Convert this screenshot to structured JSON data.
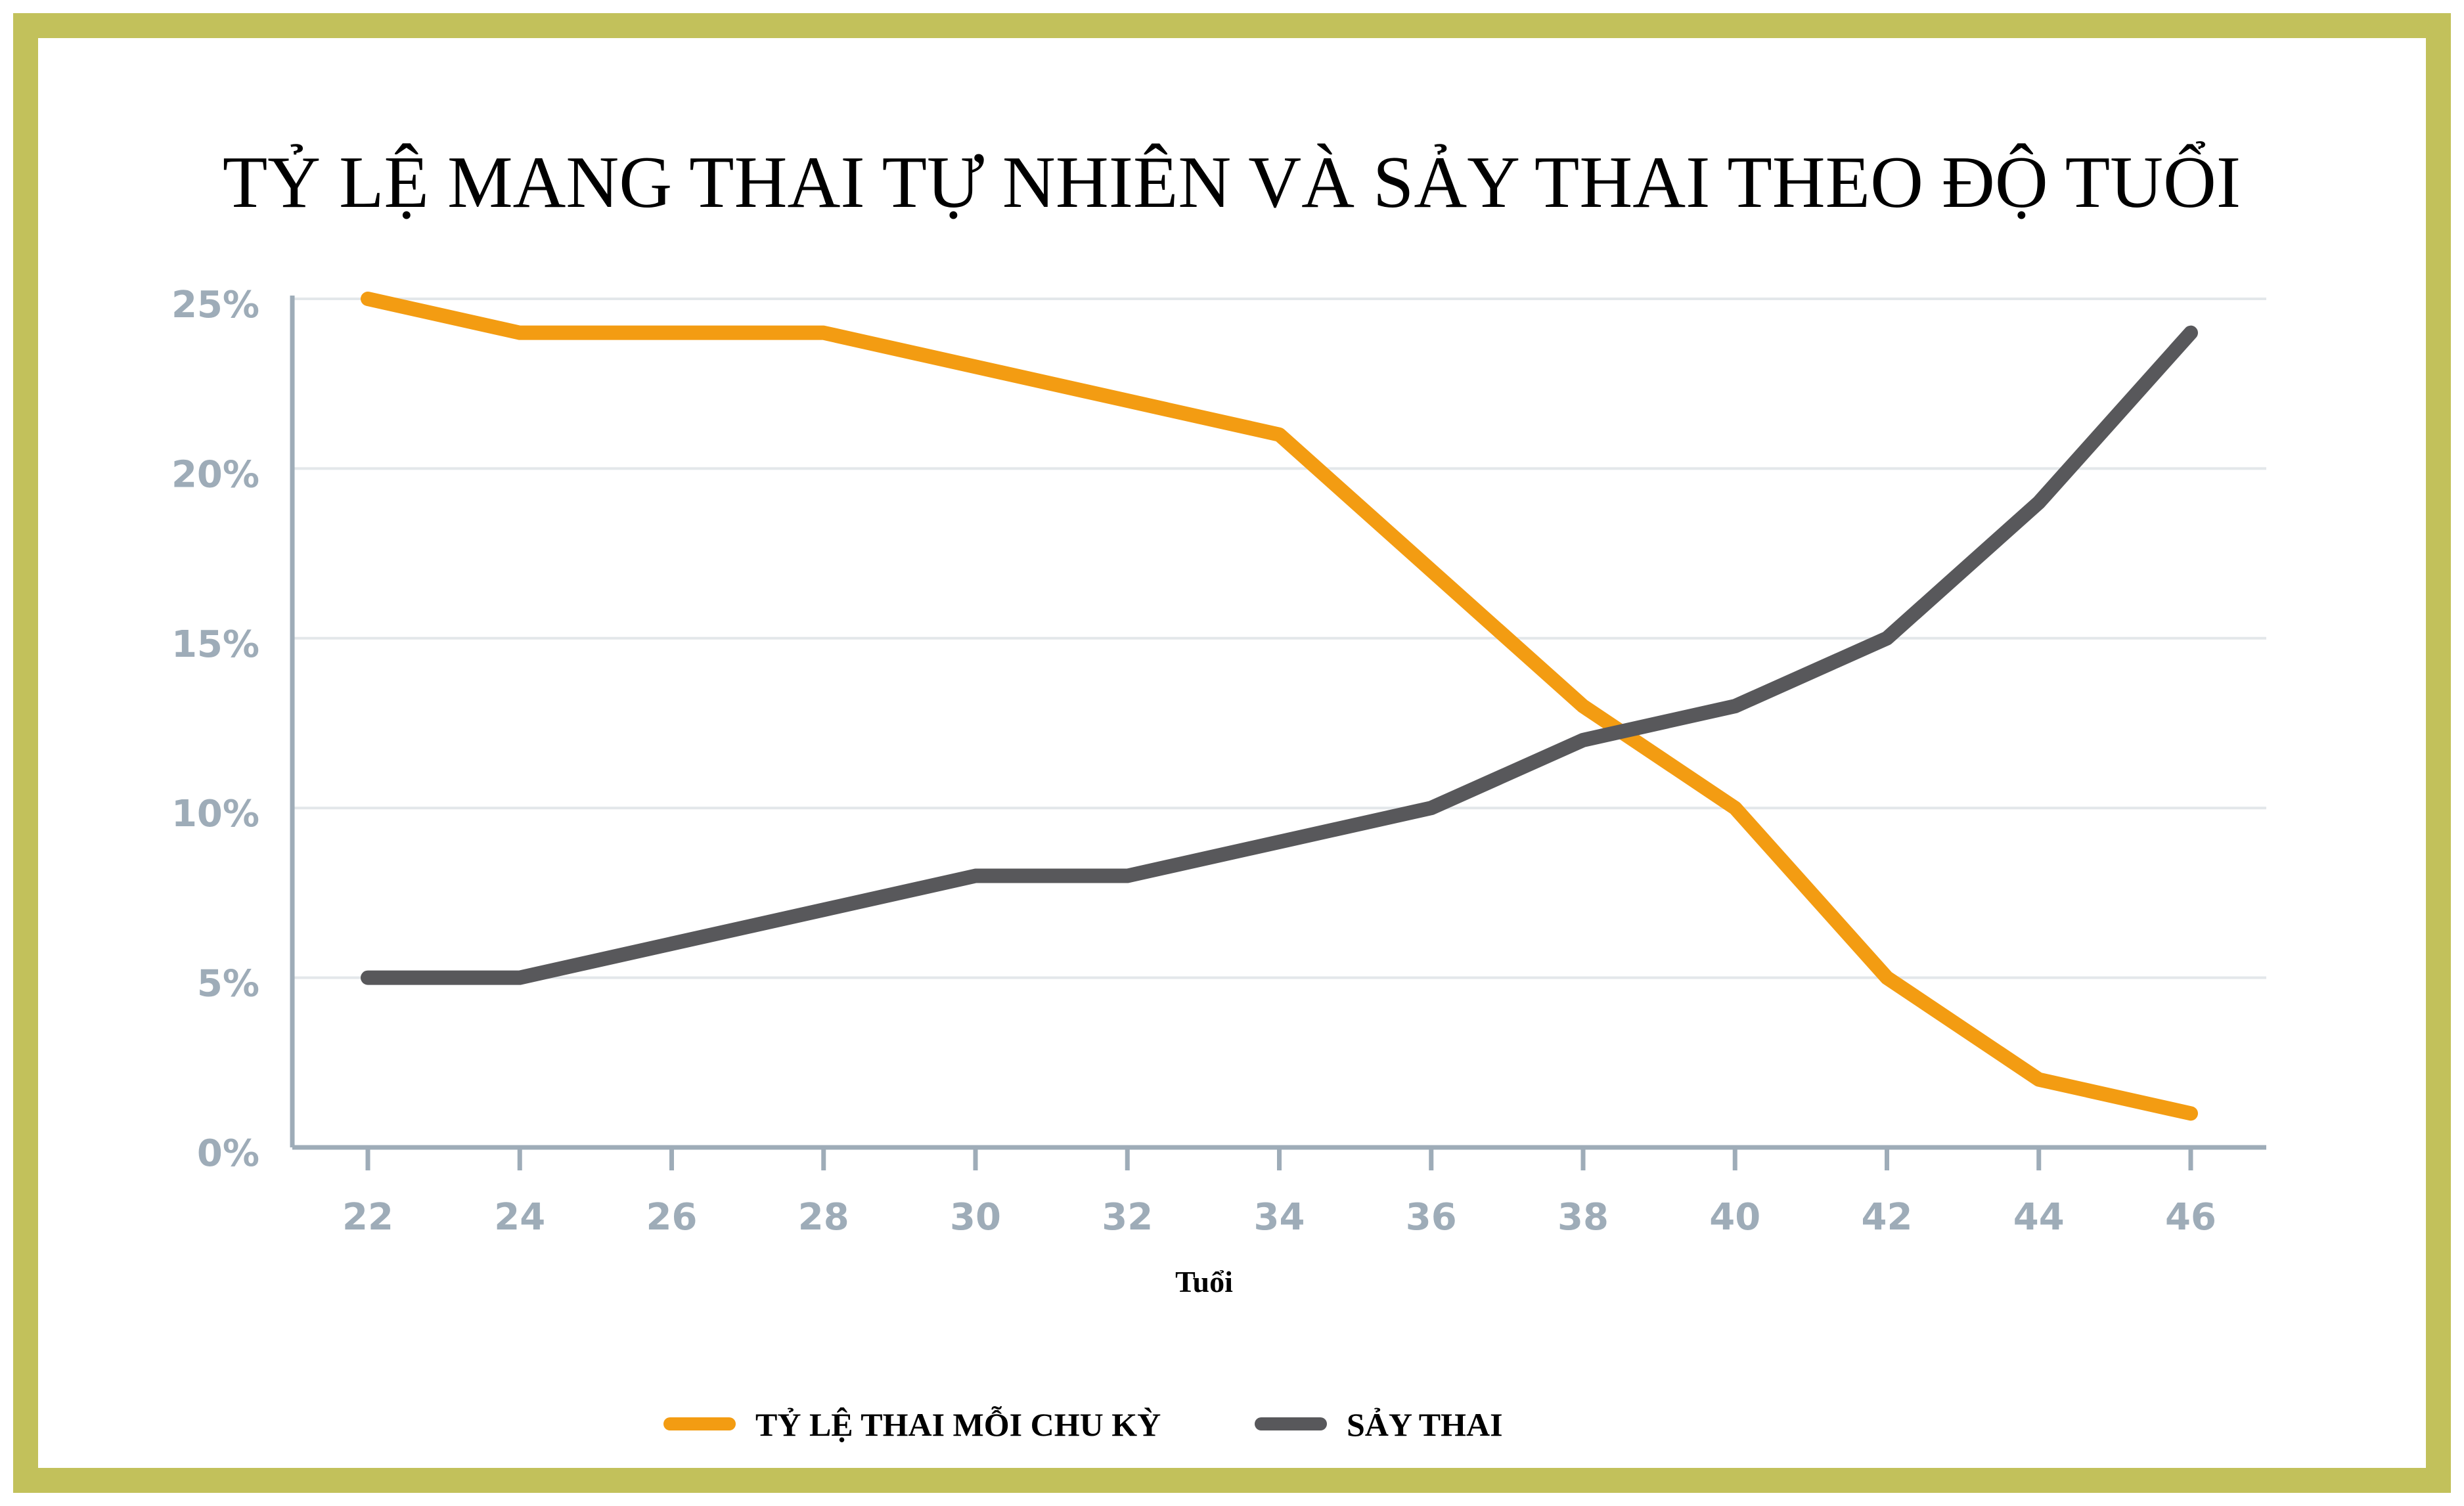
{
  "chart_data": {
    "type": "line",
    "title": "TỶ LỆ MANG THAI TỰ NHIÊN VÀ SẢY THAI THEO ĐỘ TUỔI",
    "xlabel": "Tuổi",
    "ylabel": "",
    "x": [
      22,
      24,
      26,
      28,
      30,
      32,
      34,
      36,
      38,
      40,
      42,
      44,
      46
    ],
    "ylim": [
      0,
      25
    ],
    "yticks": [
      0,
      5,
      10,
      15,
      20,
      25
    ],
    "ytick_labels": [
      "0%",
      "5%",
      "10%",
      "15%",
      "20%",
      "25%"
    ],
    "xtick_labels": [
      "22",
      "24",
      "26",
      "28",
      "30",
      "32",
      "34",
      "36",
      "38",
      "40",
      "42",
      "44",
      "46"
    ],
    "grid": "horizontal",
    "legend_position": "bottom",
    "series": [
      {
        "name": "TỶ LỆ THAI MỖI CHU KỲ",
        "color": "#f39c12",
        "values": [
          25,
          24,
          24,
          24,
          23,
          22,
          21,
          17,
          13,
          10,
          5,
          2,
          1
        ]
      },
      {
        "name": "SẢY THAI",
        "color": "#58585b",
        "values": [
          5,
          5,
          6,
          7,
          8,
          8,
          9,
          10,
          12,
          13,
          15,
          19,
          24
        ]
      }
    ]
  }
}
